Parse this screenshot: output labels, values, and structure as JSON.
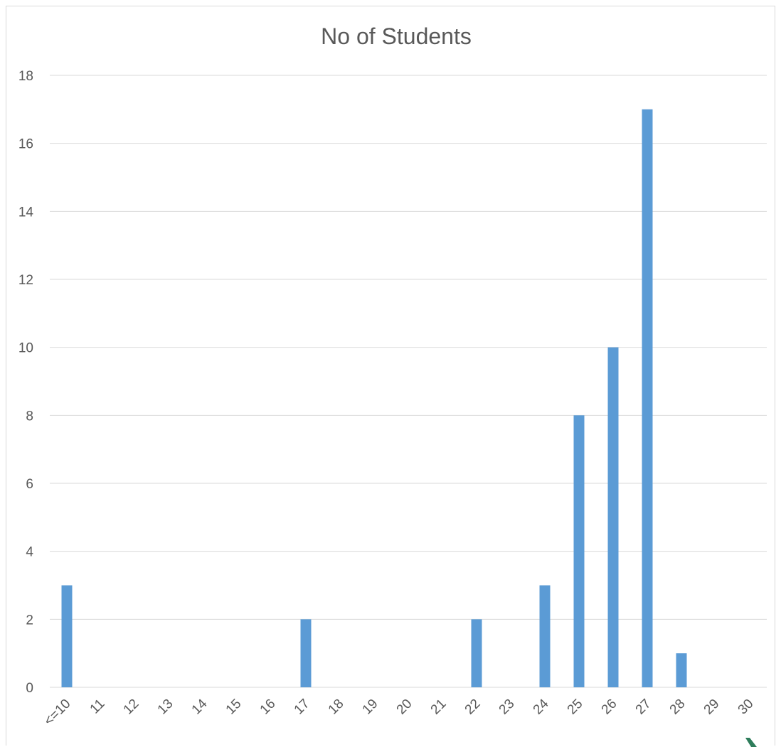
{
  "chart_data": {
    "type": "bar",
    "title": "No of Students",
    "xlabel": "",
    "ylabel": "",
    "categories": [
      "<=10",
      "11",
      "12",
      "13",
      "14",
      "15",
      "16",
      "17",
      "18",
      "19",
      "20",
      "21",
      "22",
      "23",
      "24",
      "25",
      "26",
      "27",
      "28",
      "29",
      "30"
    ],
    "series": [
      {
        "values": [
          3,
          0,
          0,
          0,
          0,
          0,
          0,
          2,
          0,
          0,
          0,
          0,
          2,
          0,
          3,
          8,
          10,
          17,
          1,
          0,
          0
        ]
      }
    ],
    "ylim": [
      0,
      18
    ],
    "yticks": [
      0,
      2,
      4,
      6,
      8,
      10,
      12,
      14,
      16,
      18
    ],
    "grid": true,
    "legend": "none",
    "bar_color": "#5b9bd5"
  }
}
